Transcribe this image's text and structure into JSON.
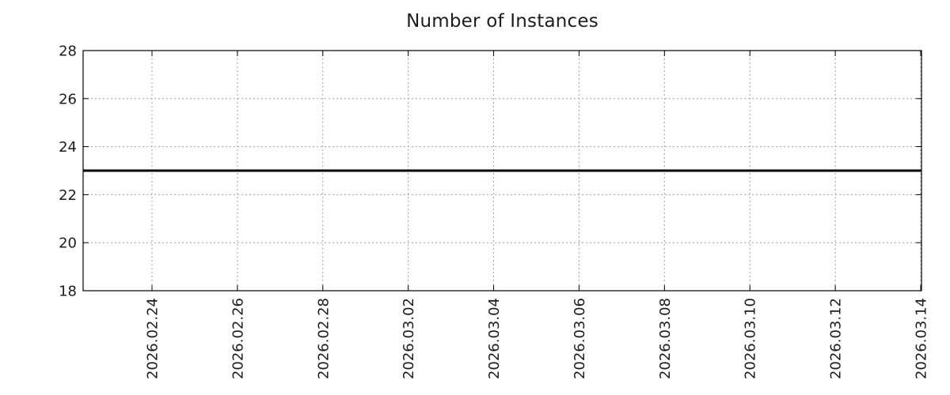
{
  "page": {
    "background_color": "#ffffff"
  },
  "chart_data": {
    "type": "line",
    "title": "Number of Instances",
    "x_axis": {
      "tick_labels": [
        "2026.02.24",
        "2026.02.26",
        "2026.02.28",
        "2026.03.02",
        "2026.03.04",
        "2026.03.06",
        "2026.03.08",
        "2026.03.10",
        "2026.03.12",
        "2026.03.14"
      ],
      "label_rotation_deg": 90
    },
    "y_axis": {
      "ticks": [
        18,
        20,
        22,
        24,
        26,
        28
      ],
      "range": [
        18,
        28
      ]
    },
    "grid": {
      "show": true,
      "style": "dotted",
      "color": "#a0a0a0"
    },
    "legend": "none",
    "frame_color": "#000000",
    "text_color": "#1c1c1c",
    "series": [
      {
        "name": "Number of Instances",
        "shape": "constant-horizontal-line",
        "value": 23,
        "color": "#000000",
        "line_width": 3
      }
    ]
  }
}
